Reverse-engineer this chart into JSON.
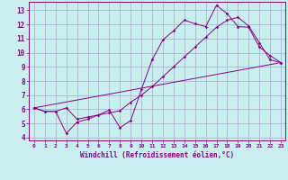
{
  "xlabel": "Windchill (Refroidissement éolien,°C)",
  "bg_color": "#c8eeee",
  "line_color": "#880088",
  "grid_color": "#aaaacc",
  "xlim": [
    -0.5,
    23.4
  ],
  "ylim": [
    3.8,
    13.6
  ],
  "xticks": [
    0,
    1,
    2,
    3,
    4,
    5,
    6,
    7,
    8,
    9,
    10,
    11,
    12,
    13,
    14,
    15,
    16,
    17,
    18,
    19,
    20,
    21,
    22,
    23
  ],
  "yticks": [
    4,
    5,
    6,
    7,
    8,
    9,
    10,
    11,
    12,
    13
  ],
  "line1_x": [
    0,
    1,
    2,
    3,
    4,
    5,
    6,
    7,
    8,
    9,
    10,
    11,
    12,
    13,
    14,
    15,
    16,
    17,
    18,
    19,
    20,
    21,
    22,
    23
  ],
  "line1_y": [
    6.1,
    5.85,
    5.85,
    4.3,
    5.1,
    5.3,
    5.6,
    5.95,
    4.7,
    5.2,
    7.4,
    9.5,
    10.9,
    11.55,
    12.3,
    12.05,
    11.85,
    13.35,
    12.75,
    11.85,
    11.8,
    10.4,
    9.8,
    9.3
  ],
  "line2_x": [
    0,
    1,
    2,
    3,
    4,
    5,
    6,
    7,
    8,
    9,
    10,
    11,
    12,
    13,
    14,
    15,
    16,
    17,
    18,
    19,
    20,
    21,
    22,
    23
  ],
  "line2_y": [
    6.1,
    5.85,
    5.85,
    6.1,
    5.3,
    5.45,
    5.6,
    5.75,
    5.9,
    6.5,
    7.0,
    7.6,
    8.3,
    9.0,
    9.7,
    10.4,
    11.1,
    11.8,
    12.3,
    12.5,
    11.9,
    10.7,
    9.5,
    9.3
  ],
  "line3_x": [
    0,
    23
  ],
  "line3_y": [
    6.1,
    9.3
  ]
}
